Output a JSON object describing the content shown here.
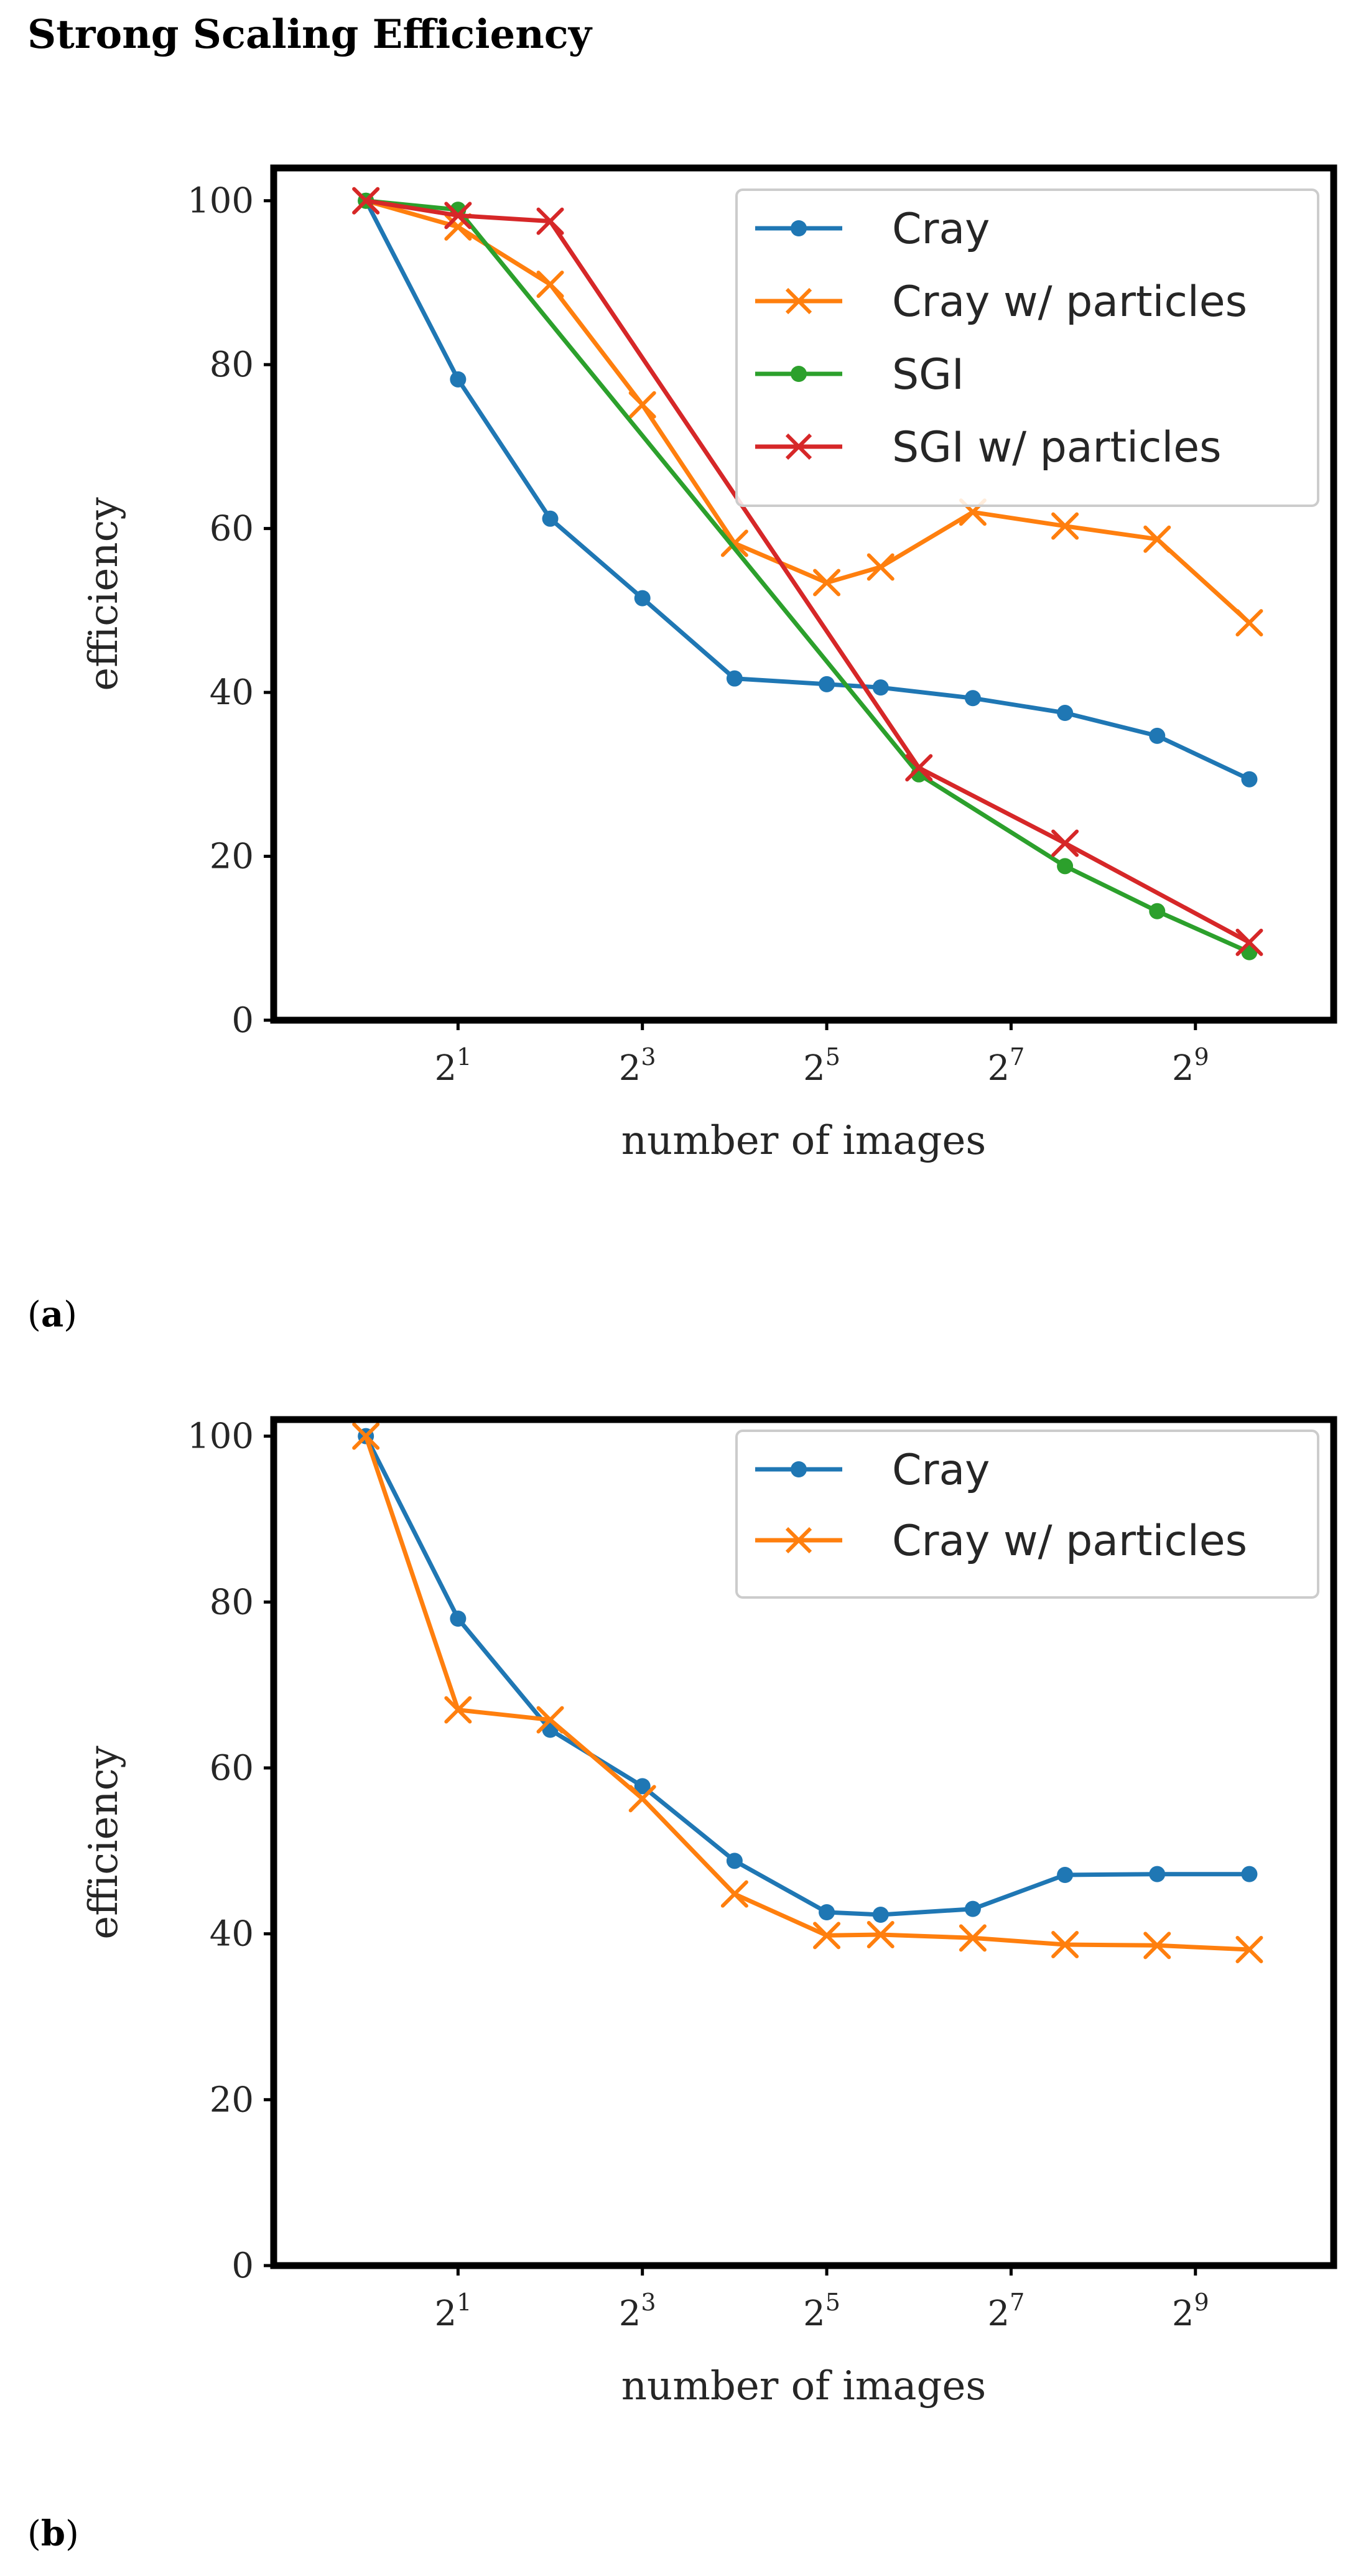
{
  "page_title": "Strong Scaling Efficiency",
  "panels": [
    {
      "paren_open": "(",
      "letter": "a",
      "paren_close": ")"
    },
    {
      "paren_open": "(",
      "letter": "b",
      "paren_close": ")"
    }
  ],
  "chart_data": [
    {
      "type": "line",
      "title": "",
      "xlabel": "number of images",
      "ylabel": "efficiency",
      "xscale": "log2",
      "xlim": [
        0.5,
        1448
      ],
      "ylim": [
        0,
        104
      ],
      "xticks": [
        {
          "value": 2,
          "base": "2",
          "exp": "1"
        },
        {
          "value": 8,
          "base": "2",
          "exp": "3"
        },
        {
          "value": 32,
          "base": "2",
          "exp": "5"
        },
        {
          "value": 128,
          "base": "2",
          "exp": "7"
        },
        {
          "value": 512,
          "base": "2",
          "exp": "9"
        }
      ],
      "yticks": [
        0,
        20,
        40,
        60,
        80,
        100
      ],
      "legend_position": "top-right",
      "series": [
        {
          "name": "Cray",
          "color": "#1f77b4",
          "marker": "dot",
          "x": [
            1,
            2,
            4,
            8,
            16,
            32,
            48,
            96,
            192,
            384,
            768
          ],
          "y": [
            100,
            78.2,
            61.2,
            51.5,
            41.7,
            41,
            40.6,
            39.3,
            37.5,
            34.7,
            29.4
          ]
        },
        {
          "name": "Cray w/ particles",
          "color": "#ff7f0e",
          "marker": "x",
          "x": [
            1,
            2,
            4,
            8,
            16,
            32,
            48,
            96,
            192,
            384,
            768
          ],
          "y": [
            100,
            96.8,
            89.8,
            75.1,
            58.2,
            53.4,
            55.3,
            62,
            60.3,
            58.7,
            48.5
          ]
        },
        {
          "name": "SGI",
          "color": "#2ca02c",
          "marker": "dot",
          "x": [
            1,
            2,
            64,
            192,
            384,
            768
          ],
          "y": [
            100,
            98.9,
            30,
            18.8,
            13.3,
            8.3
          ]
        },
        {
          "name": "SGI w/ particles",
          "color": "#d62728",
          "marker": "x",
          "x": [
            1,
            2,
            4,
            64,
            192,
            768
          ],
          "y": [
            100,
            98.2,
            97.5,
            30.8,
            21.6,
            9.5
          ]
        }
      ]
    },
    {
      "type": "line",
      "title": "",
      "xlabel": "number of images",
      "ylabel": "efficiency",
      "xscale": "log2",
      "xlim": [
        0.5,
        1448
      ],
      "ylim": [
        0,
        102
      ],
      "xticks": [
        {
          "value": 2,
          "base": "2",
          "exp": "1"
        },
        {
          "value": 8,
          "base": "2",
          "exp": "3"
        },
        {
          "value": 32,
          "base": "2",
          "exp": "5"
        },
        {
          "value": 128,
          "base": "2",
          "exp": "7"
        },
        {
          "value": 512,
          "base": "2",
          "exp": "9"
        }
      ],
      "yticks": [
        0,
        20,
        40,
        60,
        80,
        100
      ],
      "legend_position": "top-right",
      "series": [
        {
          "name": "Cray",
          "color": "#1f77b4",
          "marker": "dot",
          "x": [
            1,
            2,
            4,
            8,
            16,
            32,
            48,
            96,
            192,
            384,
            768
          ],
          "y": [
            100,
            78,
            64.6,
            57.8,
            48.8,
            42.6,
            42.3,
            43,
            47.1,
            47.2,
            47.2
          ]
        },
        {
          "name": "Cray w/ particles",
          "color": "#ff7f0e",
          "marker": "x",
          "x": [
            1,
            2,
            4,
            8,
            16,
            32,
            48,
            96,
            192,
            384,
            768
          ],
          "y": [
            100,
            67,
            65.8,
            56.3,
            44.8,
            39.8,
            39.9,
            39.5,
            38.7,
            38.6,
            38.1
          ]
        }
      ]
    }
  ]
}
